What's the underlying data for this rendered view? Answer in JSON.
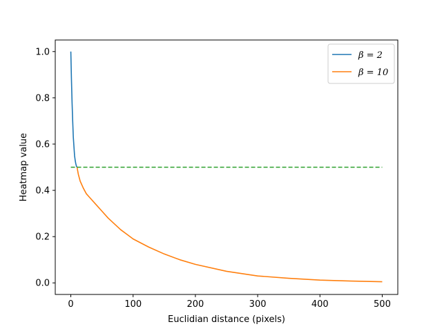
{
  "chart_data": {
    "type": "line",
    "title": "",
    "xlabel": "Euclidian distance (pixels)",
    "ylabel": "Heatmap value",
    "xlim": [
      -25,
      525
    ],
    "ylim": [
      -0.05,
      1.05
    ],
    "xticks": [
      0,
      100,
      200,
      300,
      400,
      500
    ],
    "yticks": [
      0.0,
      0.2,
      0.4,
      0.6,
      0.8,
      1.0
    ],
    "ytick_labels": [
      "0.0",
      "0.2",
      "0.4",
      "0.6",
      "0.8",
      "1.0"
    ],
    "grid": false,
    "legend_position": "top-right",
    "legend": [
      {
        "label": "β = 2",
        "color": "#1f77b4",
        "style": "solid"
      },
      {
        "label": "β = 10",
        "color": "#ff7f0e",
        "style": "solid"
      }
    ],
    "series": [
      {
        "name": "β = 2",
        "color": "#1f77b4",
        "style": "solid",
        "x": [
          0,
          0.5,
          1,
          1.5,
          2,
          3,
          4,
          5,
          6,
          7,
          8,
          9,
          10
        ],
        "y": [
          1.0,
          0.94,
          0.88,
          0.83,
          0.78,
          0.7,
          0.63,
          0.59,
          0.55,
          0.53,
          0.515,
          0.505,
          0.5
        ]
      },
      {
        "name": "β = 10",
        "color": "#ff7f0e",
        "style": "solid",
        "x": [
          10,
          12,
          15,
          20,
          25,
          30,
          40,
          50,
          60,
          70,
          80,
          90,
          100,
          125,
          150,
          175,
          200,
          250,
          300,
          350,
          400,
          450,
          500
        ],
        "y": [
          0.5,
          0.47,
          0.44,
          0.41,
          0.385,
          0.37,
          0.34,
          0.31,
          0.28,
          0.255,
          0.23,
          0.21,
          0.19,
          0.155,
          0.125,
          0.1,
          0.08,
          0.05,
          0.03,
          0.02,
          0.012,
          0.008,
          0.005
        ]
      },
      {
        "name": "",
        "color": "#2ca02c",
        "style": "dashed",
        "x": [
          0,
          500
        ],
        "y": [
          0.5,
          0.5
        ]
      }
    ]
  }
}
